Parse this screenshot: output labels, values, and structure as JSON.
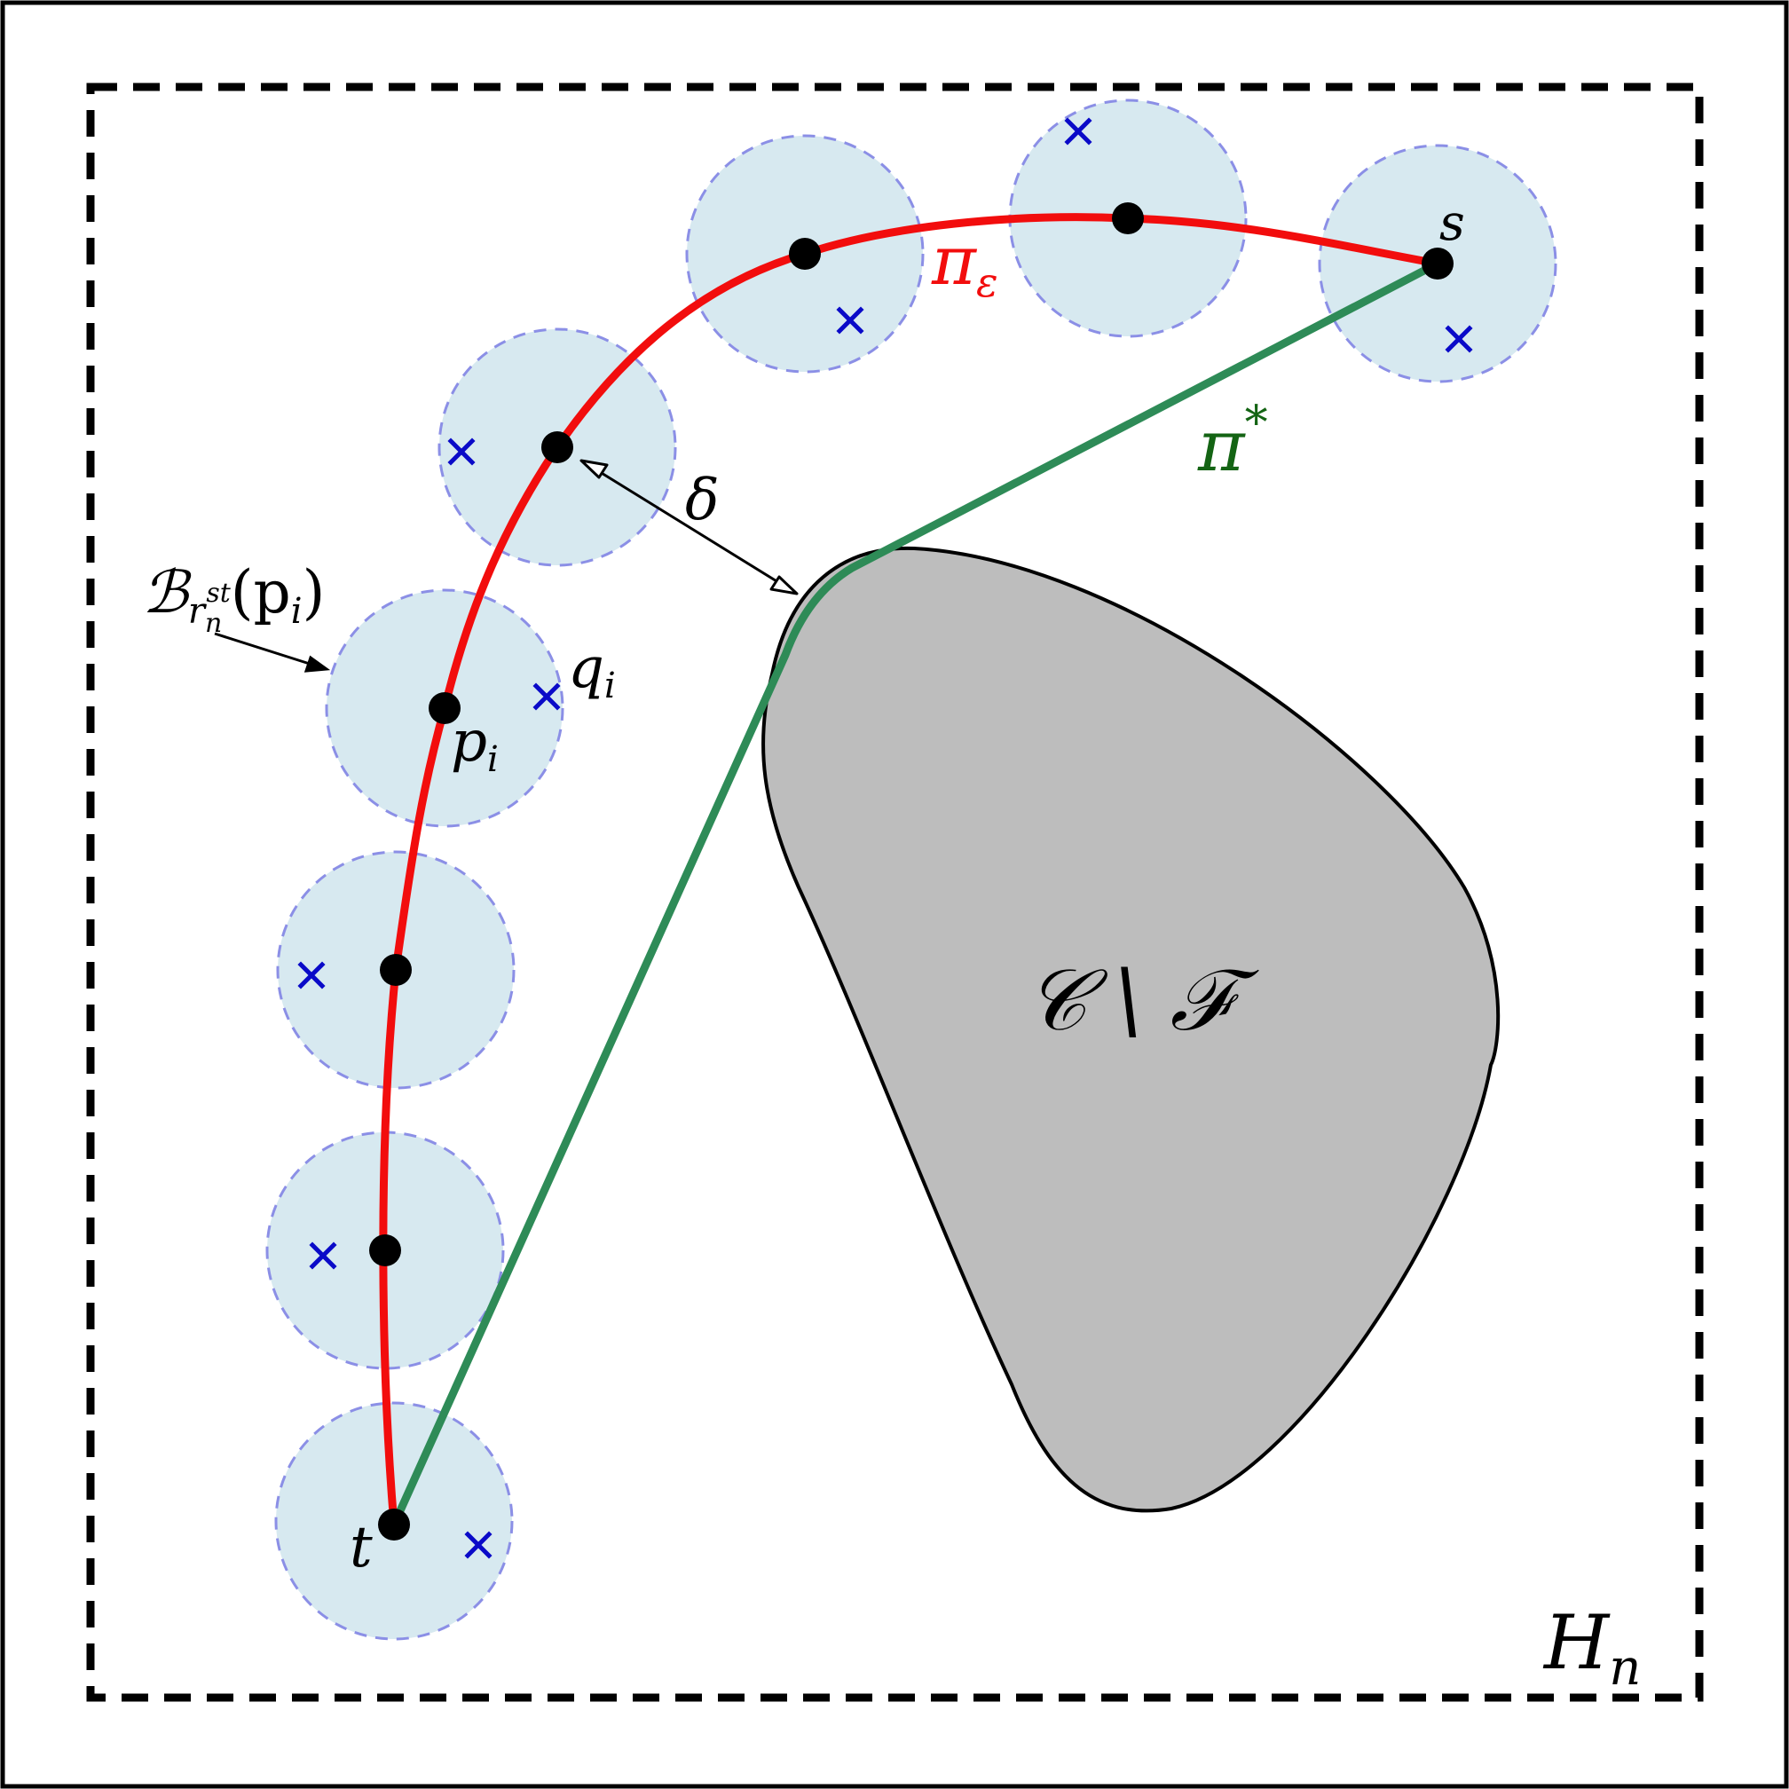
{
  "colors": {
    "background": "#ffffff",
    "frame": "#000000",
    "ball_fill": "#d7e9f0",
    "ball_stroke": "#8b8fe6",
    "sample_cross": "#0a0ac8",
    "path_eps": "#f20d0d",
    "path_opt": "#2e8b57",
    "label_opt": "#146414",
    "obstacle_fill": "#bdbdbd",
    "obstacle_stroke": "#000000",
    "waypoint": "#000000"
  },
  "icons": {
    "waypoint": "filled-circle-icon",
    "sample": "cross-icon",
    "arrow": "double-arrow-icon"
  },
  "labels": {
    "start": "s",
    "goal": "t",
    "waypoint": "p",
    "waypoint_sub": "i",
    "sample": "q",
    "sample_sub": "i",
    "path_eps": "π",
    "path_eps_sub": "ε",
    "path_opt": "π",
    "path_opt_sup": "*",
    "clearance": "δ",
    "obstacle": "𝒞 \\ ℱ",
    "region": "H",
    "region_sub": "n",
    "ball_main": "ℬ",
    "ball_sub": "r",
    "ball_sub_sub": "n",
    "ball_sub_sup": "st",
    "ball_arg": "(p",
    "ball_arg_sub": "i",
    "ball_arg_close": ")"
  }
}
